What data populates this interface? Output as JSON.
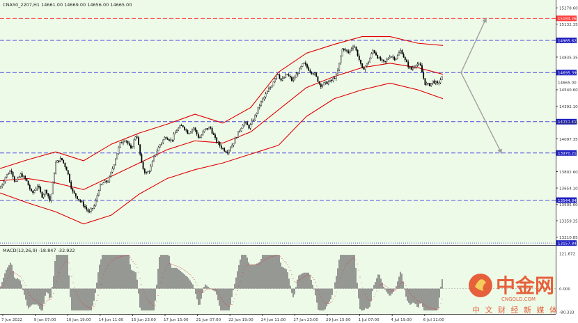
{
  "header": {
    "symbol_line": "CNA50_2207,H1  14661.00  14669.00  14656.00  14665.00"
  },
  "chart_data": {
    "type": "line",
    "title": "CNA50_2207,H1",
    "ohlc": {
      "open": 14661.0,
      "high": 14669.0,
      "low": 14656.0,
      "close": 14665.0
    },
    "ylim": [
      13140,
      15350
    ],
    "y_ticks": [
      15278.6,
      15132.35,
      14985.62,
      14835.35,
      14695.39,
      14665.0,
      14540.6,
      14392.1,
      14252.61,
      14245.85,
      14097.35,
      13970.21,
      13802.6,
      13654.1,
      13544.84,
      13505.6,
      13359.35,
      13210.85,
      13157.84
    ],
    "x_labels": [
      "7 Jun 2022",
      "9 Jun 07:00",
      "10 Jun 19:00",
      "14 Jun 11:00",
      "15 Jun 23:00",
      "17 Jun 15:00",
      "21 Jun 07:00",
      "22 Jun 19:00",
      "24 Jun 11:00",
      "27 Jun 23:00",
      "29 Jun 15:00",
      "1 Jul 07:00",
      "4 Jul 19:00",
      "6 Jul 11:00"
    ],
    "horizontal_levels": [
      {
        "value": 15184.26,
        "label": "15184.26",
        "color": "#ff4040",
        "style": "dashed"
      },
      {
        "value": 14985.62,
        "label": "14985.62",
        "color": "#4848e0",
        "style": "dashed"
      },
      {
        "value": 14695.39,
        "label": "14695.39",
        "color": "#4848e0",
        "style": "dashed"
      },
      {
        "value": 14252.61,
        "label": "14252.61",
        "color": "#4848e0",
        "style": "dashed"
      },
      {
        "value": 13970.21,
        "label": "13970.21",
        "color": "#4848e0",
        "style": "dashed"
      },
      {
        "value": 13544.84,
        "label": "13544.84",
        "color": "#4848e0",
        "style": "dashed"
      },
      {
        "value": 13157.84,
        "label": "13157.84",
        "color": "#4848e0",
        "style": "dotted"
      }
    ],
    "current_price": {
      "value": 14665.0,
      "label": "14665.00"
    },
    "price_path": [
      [
        0,
        13650
      ],
      [
        8,
        13760
      ],
      [
        16,
        13820
      ],
      [
        22,
        13700
      ],
      [
        30,
        13780
      ],
      [
        38,
        13720
      ],
      [
        46,
        13600
      ],
      [
        54,
        13680
      ],
      [
        60,
        13580
      ],
      [
        66,
        13640
      ],
      [
        72,
        13530
      ],
      [
        80,
        13880
      ],
      [
        88,
        13920
      ],
      [
        96,
        13820
      ],
      [
        104,
        13620
      ],
      [
        112,
        13560
      ],
      [
        120,
        13500
      ],
      [
        128,
        13430
      ],
      [
        136,
        13500
      ],
      [
        142,
        13650
      ],
      [
        148,
        13700
      ],
      [
        156,
        13720
      ],
      [
        164,
        13880
      ],
      [
        172,
        14050
      ],
      [
        180,
        14100
      ],
      [
        188,
        14000
      ],
      [
        196,
        14150
      ],
      [
        204,
        13850
      ],
      [
        210,
        13780
      ],
      [
        216,
        13830
      ],
      [
        222,
        13950
      ],
      [
        230,
        14050
      ],
      [
        238,
        14120
      ],
      [
        246,
        14080
      ],
      [
        254,
        14180
      ],
      [
        262,
        14220
      ],
      [
        270,
        14150
      ],
      [
        278,
        14200
      ],
      [
        286,
        14100
      ],
      [
        294,
        14180
      ],
      [
        302,
        14200
      ],
      [
        310,
        14080
      ],
      [
        318,
        14020
      ],
      [
        326,
        13980
      ],
      [
        334,
        14050
      ],
      [
        342,
        14150
      ],
      [
        350,
        14250
      ],
      [
        358,
        14200
      ],
      [
        366,
        14300
      ],
      [
        374,
        14420
      ],
      [
        382,
        14500
      ],
      [
        390,
        14580
      ],
      [
        398,
        14700
      ],
      [
        404,
        14620
      ],
      [
        412,
        14680
      ],
      [
        420,
        14620
      ],
      [
        428,
        14700
      ],
      [
        436,
        14780
      ],
      [
        444,
        14720
      ],
      [
        452,
        14680
      ],
      [
        460,
        14580
      ],
      [
        468,
        14600
      ],
      [
        476,
        14620
      ],
      [
        484,
        14680
      ],
      [
        492,
        14920
      ],
      [
        500,
        14870
      ],
      [
        508,
        14950
      ],
      [
        514,
        14850
      ],
      [
        520,
        14720
      ],
      [
        528,
        14780
      ],
      [
        536,
        14900
      ],
      [
        544,
        14820
      ],
      [
        552,
        14780
      ],
      [
        560,
        14850
      ],
      [
        568,
        14820
      ],
      [
        576,
        14900
      ],
      [
        582,
        14800
      ],
      [
        590,
        14720
      ],
      [
        598,
        14780
      ],
      [
        604,
        14750
      ],
      [
        610,
        14600
      ],
      [
        616,
        14580
      ],
      [
        622,
        14620
      ],
      [
        628,
        14590
      ],
      [
        636,
        14665
      ]
    ],
    "bollinger": {
      "middle": [
        [
          0,
          13720
        ],
        [
          40,
          13740
        ],
        [
          80,
          13700
        ],
        [
          120,
          13640
        ],
        [
          160,
          13760
        ],
        [
          200,
          13880
        ],
        [
          240,
          14000
        ],
        [
          280,
          14080
        ],
        [
          320,
          14060
        ],
        [
          360,
          14160
        ],
        [
          400,
          14360
        ],
        [
          440,
          14560
        ],
        [
          480,
          14660
        ],
        [
          520,
          14740
        ],
        [
          560,
          14780
        ],
        [
          600,
          14740
        ],
        [
          636,
          14680
        ]
      ],
      "upper": [
        [
          0,
          13830
        ],
        [
          40,
          13910
        ],
        [
          80,
          13980
        ],
        [
          120,
          13900
        ],
        [
          160,
          14050
        ],
        [
          200,
          14150
        ],
        [
          240,
          14230
        ],
        [
          280,
          14320
        ],
        [
          320,
          14240
        ],
        [
          360,
          14380
        ],
        [
          400,
          14700
        ],
        [
          440,
          14870
        ],
        [
          480,
          14950
        ],
        [
          520,
          15020
        ],
        [
          560,
          15020
        ],
        [
          600,
          14960
        ],
        [
          636,
          14940
        ]
      ],
      "lower": [
        [
          0,
          13610
        ],
        [
          40,
          13520
        ],
        [
          80,
          13440
        ],
        [
          120,
          13330
        ],
        [
          160,
          13410
        ],
        [
          200,
          13600
        ],
        [
          240,
          13740
        ],
        [
          280,
          13820
        ],
        [
          320,
          13880
        ],
        [
          360,
          13960
        ],
        [
          400,
          14040
        ],
        [
          440,
          14300
        ],
        [
          480,
          14460
        ],
        [
          520,
          14540
        ],
        [
          560,
          14600
        ],
        [
          600,
          14540
        ],
        [
          636,
          14460
        ]
      ]
    },
    "projection_arrows": [
      {
        "from": [
          662,
          14695
        ],
        "to": [
          698,
          15184
        ]
      },
      {
        "from": [
          662,
          14695
        ],
        "to": [
          720,
          13970
        ]
      }
    ],
    "macd": {
      "label": "MACD(12,26,9) -18.847 -32.922",
      "y_ticks": [
        121.672,
        0.0,
        -80.333
      ],
      "ylim": [
        -80.333,
        121.672
      ]
    }
  },
  "watermark": {
    "brand": "中金网",
    "url": "CNGOLD.COM",
    "tagline": "中 文 财 经 新 媒 体"
  },
  "colors": {
    "background": "#ffffff",
    "plot_bg": "#eefae8",
    "candles": "#000000",
    "bollinger": "#e00000",
    "level_blue": "#4848e0",
    "level_red": "#ff4040",
    "macd_hist": "#808080",
    "macd_signal": "#e00000",
    "brand_orange": "#e5461f"
  }
}
